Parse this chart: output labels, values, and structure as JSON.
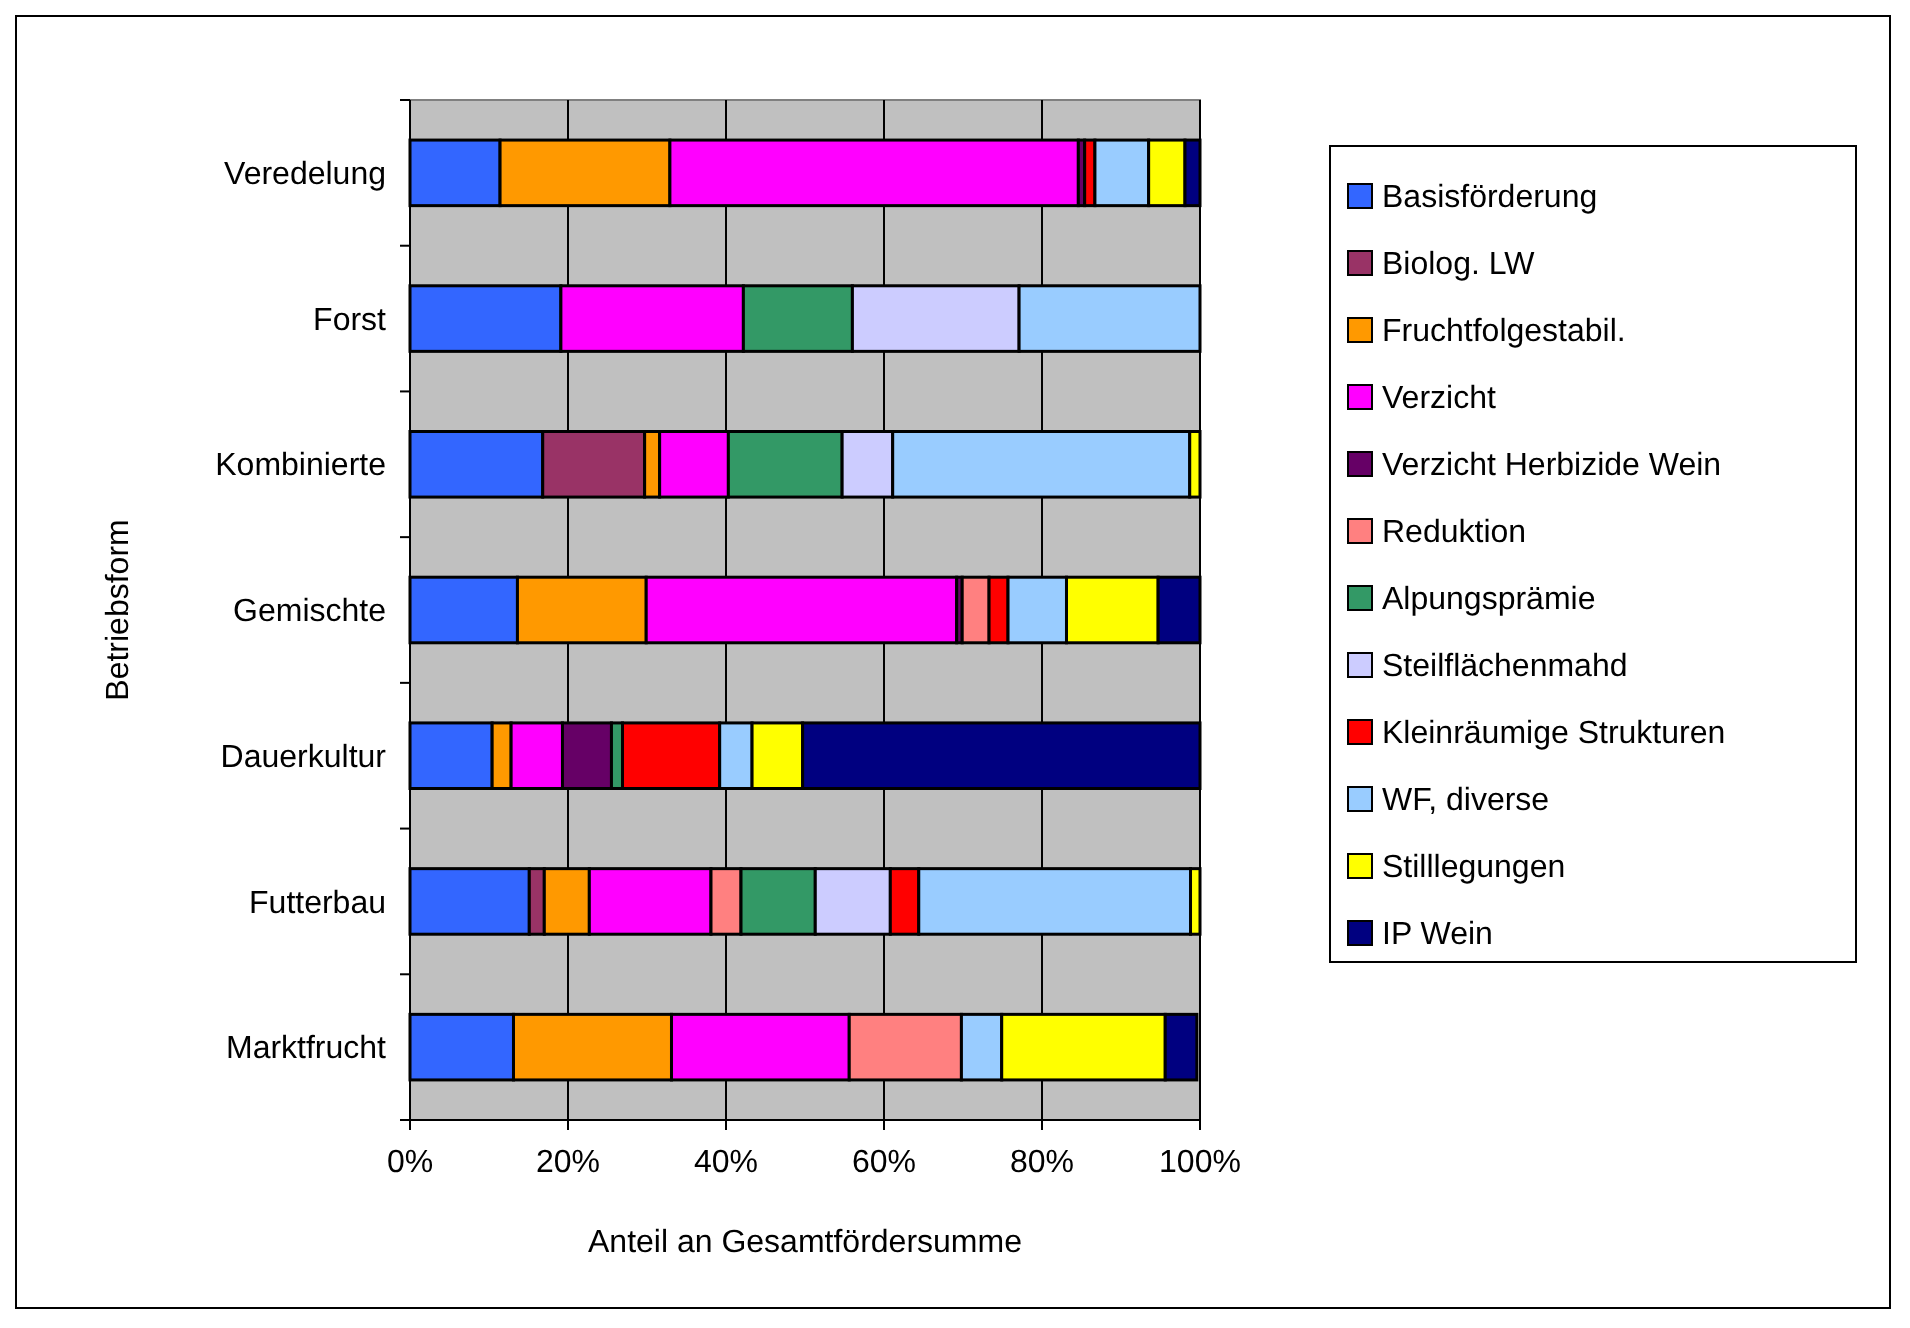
{
  "chart_data": {
    "type": "bar",
    "orientation": "horizontal",
    "stacked": true,
    "ylabel": "Betriebsform",
    "xlabel": "Anteil an Gesamtfördersumme",
    "categories": [
      "Veredelung",
      "Forst",
      "Kombinierte",
      "Gemischte",
      "Dauerkultur",
      "Futterbau",
      "Marktfrucht"
    ],
    "xlim": [
      0,
      100
    ],
    "xticks": [
      {
        "value": 0,
        "label": "0%"
      },
      {
        "value": 20,
        "label": "20%"
      },
      {
        "value": 40,
        "label": "40%"
      },
      {
        "value": 60,
        "label": "60%"
      },
      {
        "value": 80,
        "label": "80%"
      },
      {
        "value": 100,
        "label": "100%"
      }
    ],
    "grid": "x",
    "legend": "right",
    "series": [
      {
        "name": "Basisförderung",
        "color": "#3366ff",
        "values": [
          11.4,
          19.1,
          16.8,
          13.6,
          10.4,
          15.1,
          13.1
        ]
      },
      {
        "name": "Biolog. LW",
        "color": "#993366",
        "values": [
          0,
          0,
          12.9,
          0,
          0,
          1.9,
          0
        ]
      },
      {
        "name": "Fruchtfolgestabil.",
        "color": "#ff9900",
        "values": [
          21.5,
          0,
          1.9,
          16.3,
          2.4,
          5.7,
          20.0
        ]
      },
      {
        "name": "Verzicht",
        "color": "#ff00ff",
        "values": [
          51.7,
          23.1,
          8.7,
          39.3,
          6.5,
          15.4,
          22.5
        ]
      },
      {
        "name": "Verzicht Herbizide Wein",
        "color": "#660066",
        "values": [
          0.8,
          0,
          0,
          0.7,
          6.2,
          0,
          null
        ]
      },
      {
        "name": "Reduktion",
        "color": "#ff8080",
        "values": [
          0,
          0,
          0,
          3.4,
          0,
          3.8,
          14.2
        ]
      },
      {
        "name": "Alpungsprämie",
        "color": "#339966",
        "values": [
          0,
          13.8,
          14.4,
          0,
          1.4,
          9.4,
          0
        ]
      },
      {
        "name": "Steilflächenmahd",
        "color": "#ccccff",
        "values": [
          0,
          21.1,
          6.4,
          0,
          0,
          9.5,
          0
        ]
      },
      {
        "name": "Kleinräumige Strukturen",
        "color": "#ff0000",
        "values": [
          1.3,
          0,
          0,
          2.4,
          12.3,
          3.6,
          0
        ]
      },
      {
        "name": "WF, diverse",
        "color": "#99ccff",
        "values": [
          6.8,
          22.9,
          37.6,
          7.4,
          4.1,
          34.4,
          5.1
        ]
      },
      {
        "name": "Stilllegungen",
        "color": "#ffff00",
        "values": [
          4.6,
          0,
          1.3,
          11.6,
          6.4,
          1.2,
          20.7
        ]
      },
      {
        "name": "IP Wein",
        "color": "#000080",
        "values": [
          1.9,
          0,
          0,
          5.3,
          50.3,
          0,
          4.0
        ]
      }
    ]
  }
}
